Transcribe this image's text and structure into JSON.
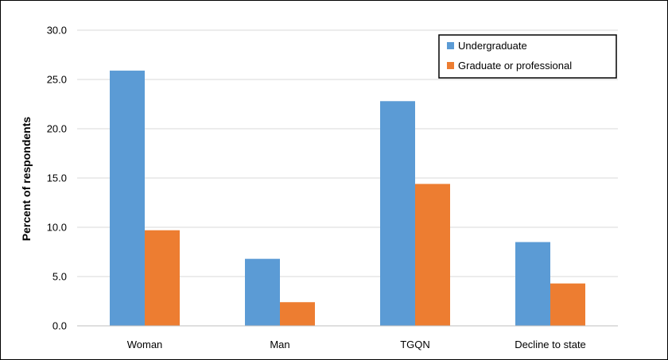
{
  "chart_data": {
    "type": "bar",
    "categories": [
      "Woman",
      "Man",
      "TGQN",
      "Decline to state"
    ],
    "series": [
      {
        "name": "Undergraduate",
        "values": [
          25.9,
          6.8,
          22.8,
          8.5
        ],
        "color": "#5B9BD5"
      },
      {
        "name": "Graduate or professional",
        "values": [
          9.7,
          2.4,
          14.4,
          4.3
        ],
        "color": "#ED7D31"
      }
    ],
    "title": "",
    "xlabel": "",
    "ylabel": "Percent of respondents",
    "ylim": [
      0,
      30
    ],
    "yticks": [
      "0.0",
      "5.0",
      "10.0",
      "15.0",
      "20.0",
      "25.0",
      "30.0"
    ],
    "grid": true,
    "legend_position": "top-right"
  }
}
